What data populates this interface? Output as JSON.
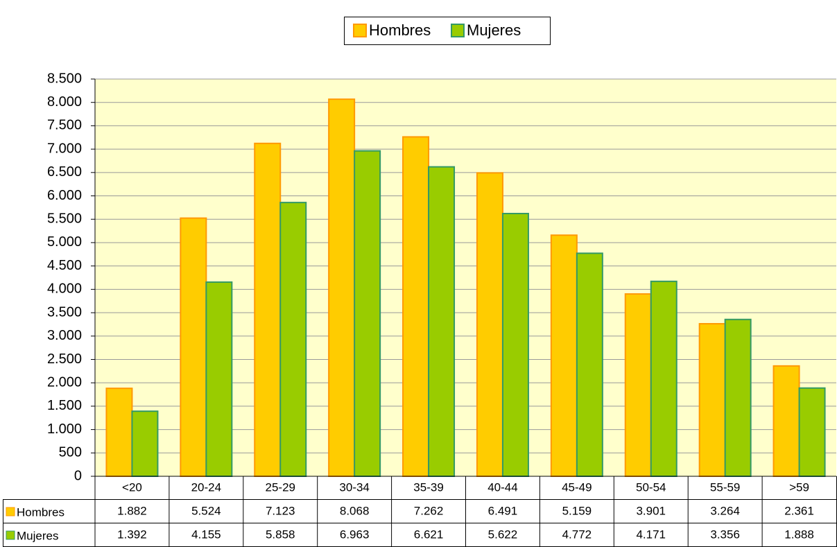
{
  "chart_data": {
    "type": "bar",
    "categories": [
      "<20",
      "20-24",
      "25-29",
      "30-34",
      "35-39",
      "40-44",
      "45-49",
      "50-54",
      "55-59",
      ">59"
    ],
    "series": [
      {
        "name": "Hombres",
        "color": "#ffcc00",
        "values": [
          1882,
          5524,
          7123,
          8068,
          7262,
          6491,
          5159,
          3901,
          3264,
          2361
        ],
        "value_labels": [
          "1.882",
          "5.524",
          "7.123",
          "8.068",
          "7.262",
          "6.491",
          "5.159",
          "3.901",
          "3.264",
          "2.361"
        ]
      },
      {
        "name": "Mujeres",
        "color": "#99cc00",
        "values": [
          1392,
          4155,
          5858,
          6963,
          6621,
          5622,
          4772,
          4171,
          3356,
          1888
        ],
        "value_labels": [
          "1.392",
          "4.155",
          "5.858",
          "6.963",
          "6.621",
          "5.622",
          "4.772",
          "4.171",
          "3.356",
          "1.888"
        ]
      }
    ],
    "ylim": [
      0,
      8500
    ],
    "yticks": [
      0,
      500,
      {
        "value": 1000,
        "label": "1.000"
      },
      {
        "value": 1500,
        "label": "1.500"
      },
      {
        "value": 2000,
        "label": "2.000"
      },
      {
        "value": 2500,
        "label": "2.500"
      },
      {
        "value": 3000,
        "label": "3.000"
      },
      {
        "value": 3500,
        "label": "3.500"
      },
      {
        "value": 4000,
        "label": "4.000"
      },
      {
        "value": 4500,
        "label": "4.500"
      },
      {
        "value": 5000,
        "label": "5.000"
      },
      {
        "value": 5500,
        "label": "5.500"
      },
      {
        "value": 6000,
        "label": "6.000"
      },
      {
        "value": 6500,
        "label": "6.500"
      },
      {
        "value": 7000,
        "label": "7.000"
      },
      {
        "value": 7500,
        "label": "7.500"
      },
      {
        "value": 8000,
        "label": "8.000"
      },
      {
        "value": 8500,
        "label": "8.500"
      }
    ],
    "grid": true,
    "legend": "top"
  }
}
